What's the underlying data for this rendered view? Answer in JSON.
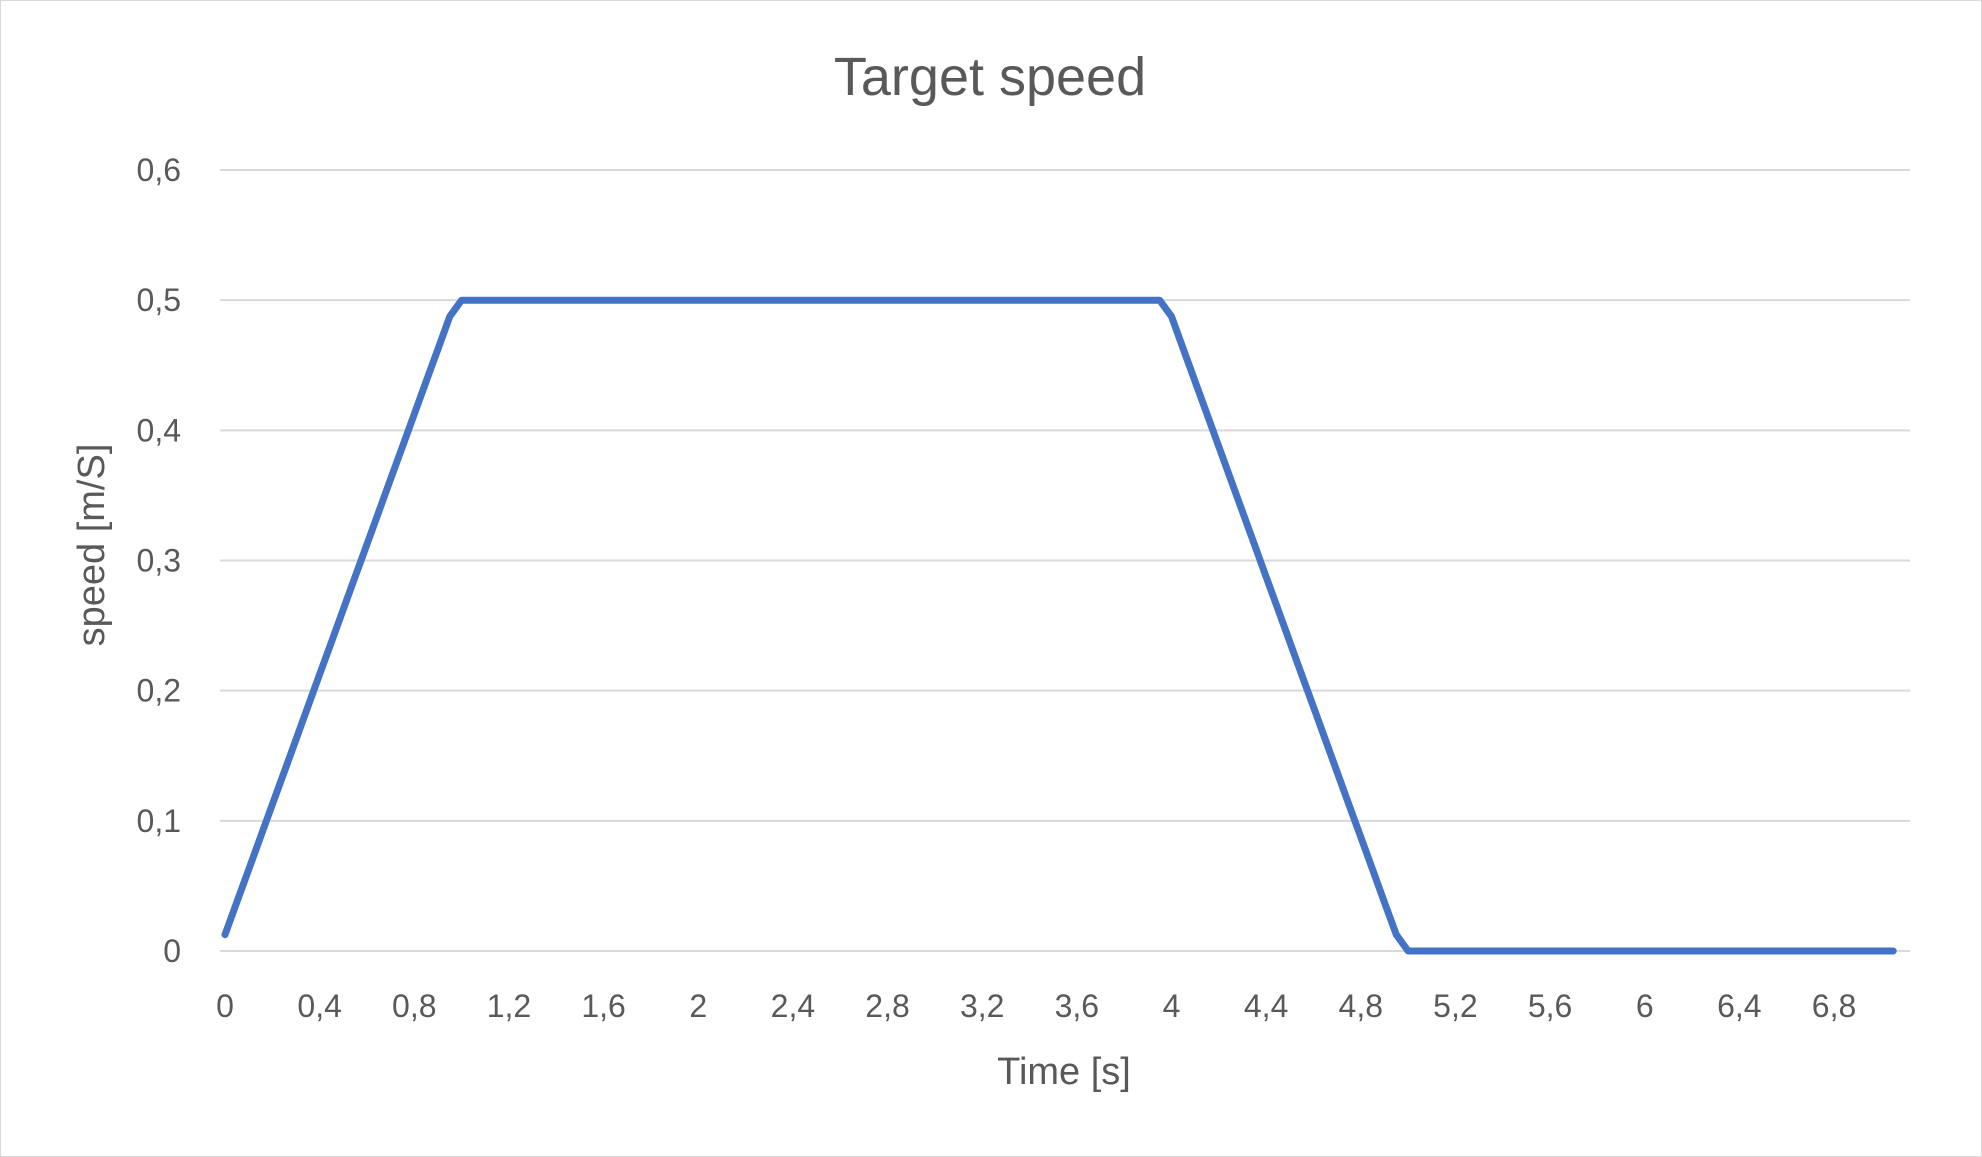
{
  "chart_data": {
    "type": "line",
    "title": "Target speed",
    "xlabel": "Time [s]",
    "ylabel": "speed [m/S]",
    "x_tick_labels": [
      "0",
      "0,4",
      "0,8",
      "1,2",
      "1,6",
      "2",
      "2,4",
      "2,8",
      "3,2",
      "3,6",
      "4",
      "4,4",
      "4,8",
      "5,2",
      "5,6",
      "6",
      "6,4",
      "6,8"
    ],
    "y_tick_labels": [
      "0",
      "0,1",
      "0,2",
      "0,3",
      "0,4",
      "0,5",
      "0,6"
    ],
    "y_tick_values": [
      0,
      0.1,
      0.2,
      0.3,
      0.4,
      0.5,
      0.6
    ],
    "ylim": [
      0,
      0.6
    ],
    "xlim": [
      0,
      7.1
    ],
    "grid": true,
    "legend": "none",
    "colors": {
      "series": "#4472c4",
      "grid": "#d9d9d9",
      "text": "#595959"
    },
    "series": [
      {
        "x": [
          0,
          0.05,
          0.1,
          0.15,
          0.2,
          0.25,
          0.3,
          0.35,
          0.4,
          0.45,
          0.5,
          0.55,
          0.6,
          0.65,
          0.7,
          0.75,
          0.8,
          0.85,
          0.9,
          0.95,
          1.0,
          1.05,
          2.0,
          2.4,
          3.0,
          3.5,
          3.9,
          3.95,
          4.0,
          4.05,
          4.1,
          4.15,
          4.2,
          4.25,
          4.3,
          4.35,
          4.4,
          4.45,
          4.5,
          4.55,
          4.6,
          4.65,
          4.7,
          4.75,
          4.8,
          4.85,
          4.9,
          4.95,
          5.0,
          5.5,
          6.0,
          6.5,
          7.05
        ],
        "values": [
          0.0125,
          0.0375,
          0.0625,
          0.0875,
          0.1125,
          0.1375,
          0.1625,
          0.1875,
          0.2125,
          0.2375,
          0.2625,
          0.2875,
          0.3125,
          0.3375,
          0.3625,
          0.3875,
          0.4125,
          0.4375,
          0.4625,
          0.4875,
          0.5,
          0.5,
          0.5,
          0.5,
          0.5,
          0.5,
          0.5,
          0.5,
          0.4875,
          0.4625,
          0.4375,
          0.4125,
          0.3875,
          0.3625,
          0.3375,
          0.3125,
          0.2875,
          0.2625,
          0.2375,
          0.2125,
          0.1875,
          0.1625,
          0.1375,
          0.1125,
          0.0875,
          0.0625,
          0.0375,
          0.0125,
          0,
          0,
          0,
          0,
          0
        ]
      }
    ]
  }
}
